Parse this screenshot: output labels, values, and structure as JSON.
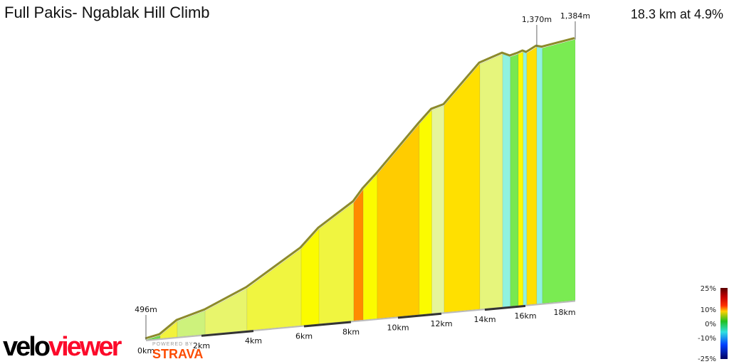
{
  "header": {
    "title": "Full Pakis- Ngablak Hill Climb",
    "summary": "18.3 km at 4.9%"
  },
  "branding": {
    "logo_velo": "velo",
    "logo_viewer": "viewer",
    "powered_by": "POWERED BY",
    "strava": "STRAVA"
  },
  "chart_data": {
    "type": "area",
    "title": "Full Pakis- Ngablak Hill Climb",
    "xlabel": "",
    "ylabel": "",
    "x_unit": "km",
    "y_unit": "m",
    "xlim": [
      0,
      18.3
    ],
    "x_ticks": [
      "0km",
      "2km",
      "4km",
      "6km",
      "8km",
      "10km",
      "12km",
      "14km",
      "16km",
      "18km"
    ],
    "x_tick_values": [
      0,
      2,
      4,
      6,
      8,
      10,
      12,
      14,
      16,
      18
    ],
    "elevation_labels": [
      {
        "label": "496m",
        "km": 0,
        "elevation": 496
      },
      {
        "label": "1,370m",
        "km": 16.58,
        "elevation": 1370
      },
      {
        "label": "1,384m",
        "km": 18.3,
        "elevation": 1384
      }
    ],
    "segments": [
      {
        "from_km": 0.0,
        "to_km": 0.51,
        "start_m": 496,
        "end_m": 506,
        "color": "#6fd94a"
      },
      {
        "from_km": 0.51,
        "to_km": 1.13,
        "start_m": 506,
        "end_m": 549,
        "color": "#f2f23c"
      },
      {
        "from_km": 1.13,
        "to_km": 2.14,
        "start_m": 549,
        "end_m": 576,
        "color": "#cdf27c"
      },
      {
        "from_km": 2.14,
        "to_km": 3.75,
        "start_m": 576,
        "end_m": 639,
        "color": "#e8f56c"
      },
      {
        "from_km": 3.75,
        "to_km": 5.89,
        "start_m": 639,
        "end_m": 757,
        "color": "#f0f540"
      },
      {
        "from_km": 5.89,
        "to_km": 6.64,
        "start_m": 757,
        "end_m": 819,
        "color": "#fbfb00"
      },
      {
        "from_km": 6.64,
        "to_km": 8.12,
        "start_m": 819,
        "end_m": 898,
        "color": "#f0f540"
      },
      {
        "from_km": 8.12,
        "to_km": 8.52,
        "start_m": 898,
        "end_m": 939,
        "color": "#ff8a00"
      },
      {
        "from_km": 8.52,
        "to_km": 9.12,
        "start_m": 939,
        "end_m": 987,
        "color": "#fbfb00"
      },
      {
        "from_km": 9.12,
        "to_km": 10.98,
        "start_m": 987,
        "end_m": 1144,
        "color": "#ffcc00"
      },
      {
        "from_km": 10.98,
        "to_km": 11.56,
        "start_m": 1144,
        "end_m": 1188,
        "color": "#fbfb00"
      },
      {
        "from_km": 11.56,
        "to_km": 12.13,
        "start_m": 1188,
        "end_m": 1200,
        "color": "#e6f59a"
      },
      {
        "from_km": 12.13,
        "to_km": 13.77,
        "start_m": 1200,
        "end_m": 1330,
        "color": "#ffe000"
      },
      {
        "from_km": 13.77,
        "to_km": 14.88,
        "start_m": 1330,
        "end_m": 1357,
        "color": "#e6f57c"
      },
      {
        "from_km": 14.88,
        "to_km": 15.26,
        "start_m": 1357,
        "end_m": 1345,
        "color": "#90f2e0"
      },
      {
        "from_km": 15.26,
        "to_km": 15.65,
        "start_m": 1345,
        "end_m": 1352,
        "color": "#78e850"
      },
      {
        "from_km": 15.65,
        "to_km": 15.89,
        "start_m": 1352,
        "end_m": 1358,
        "color": "#fbfb00"
      },
      {
        "from_km": 15.89,
        "to_km": 16.07,
        "start_m": 1358,
        "end_m": 1352,
        "color": "#90f2e0"
      },
      {
        "from_km": 16.07,
        "to_km": 16.58,
        "start_m": 1352,
        "end_m": 1370,
        "color": "#ffe000"
      },
      {
        "from_km": 16.58,
        "to_km": 16.87,
        "start_m": 1370,
        "end_m": 1365,
        "color": "#90f2e0"
      },
      {
        "from_km": 16.87,
        "to_km": 18.3,
        "start_m": 1365,
        "end_m": 1384,
        "color": "#7aeb52"
      }
    ],
    "legend": {
      "type": "gradient-colorbar",
      "placement": "bottom-right",
      "labels": [
        "25%",
        "10%",
        "0%",
        "-10%",
        "-25%"
      ],
      "values": [
        25,
        10,
        0,
        -10,
        -25
      ],
      "colors": [
        "#5a0000",
        "#ff2000",
        "#ffd000",
        "#20c020",
        "#30e0e0",
        "#0040ff",
        "#000060"
      ]
    },
    "grid": false
  }
}
